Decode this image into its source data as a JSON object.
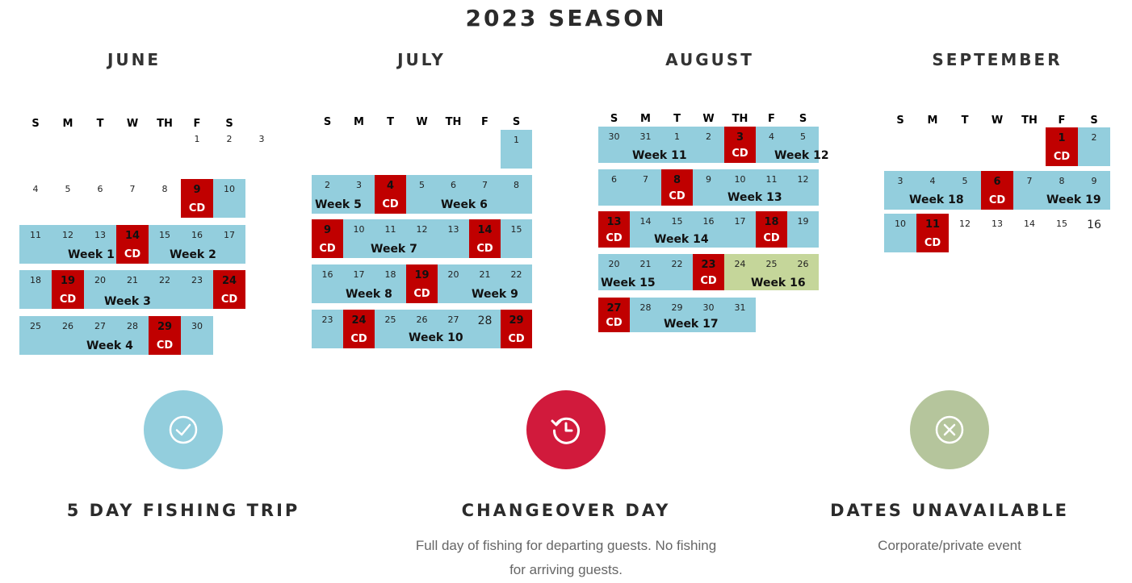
{
  "title": "2023 SEASON",
  "colors": {
    "available": "#93cedd",
    "changeover": "#c00000",
    "unavailable": "#c5d69a",
    "changeover_circle": "#d11a3c",
    "unavailable_circle": "#b5c59c"
  },
  "months": [
    {
      "name": "JUNE",
      "headers": [
        "S",
        "M",
        "T",
        "W",
        "TH",
        "F",
        "S"
      ],
      "cells": [
        {
          "d": "1",
          "c": 0
        },
        {
          "d": "2",
          "c": 0
        },
        {
          "d": "3",
          "c": 0
        },
        {
          "d": "4",
          "c": 0
        },
        {
          "d": "5",
          "c": 0
        },
        {
          "d": "6",
          "c": 0
        },
        {
          "d": "7",
          "c": 0
        },
        {
          "d": "8",
          "c": 0
        },
        {
          "d": "9",
          "c": "r"
        },
        {
          "d": "10",
          "c": "b"
        },
        {
          "d": "11",
          "c": "b"
        },
        {
          "d": "12",
          "c": "b"
        },
        {
          "d": "13",
          "c": "b"
        },
        {
          "d": "14",
          "c": "r"
        },
        {
          "d": "15",
          "c": "b"
        },
        {
          "d": "16",
          "c": "b"
        },
        {
          "d": "17",
          "c": "b"
        },
        {
          "d": "18",
          "c": "b"
        },
        {
          "d": "19",
          "c": "r"
        },
        {
          "d": "20",
          "c": "b"
        },
        {
          "d": "21",
          "c": "b"
        },
        {
          "d": "22",
          "c": "b"
        },
        {
          "d": "23",
          "c": "b"
        },
        {
          "d": "24",
          "c": "r"
        },
        {
          "d": "25",
          "c": "b"
        },
        {
          "d": "26",
          "c": "b"
        },
        {
          "d": "27",
          "c": "b"
        },
        {
          "d": "28",
          "c": "b"
        },
        {
          "d": "29",
          "c": "r"
        },
        {
          "d": "30",
          "c": "b"
        }
      ],
      "weeks": [
        "Week 1",
        "Week 2",
        "Week 3",
        "Week 4"
      ]
    },
    {
      "name": "JULY",
      "headers": [
        "S",
        "M",
        "T",
        "W",
        "TH",
        "F",
        "S"
      ],
      "cells": [
        {
          "d": "1",
          "c": "b"
        },
        {
          "d": "2",
          "c": "b"
        },
        {
          "d": "3",
          "c": "b"
        },
        {
          "d": "4",
          "c": "r"
        },
        {
          "d": "5",
          "c": "b"
        },
        {
          "d": "6",
          "c": "b"
        },
        {
          "d": "7",
          "c": "b"
        },
        {
          "d": "8",
          "c": "b"
        },
        {
          "d": "9",
          "c": "r"
        },
        {
          "d": "10",
          "c": "b"
        },
        {
          "d": "11",
          "c": "b"
        },
        {
          "d": "12",
          "c": "b"
        },
        {
          "d": "13",
          "c": "b"
        },
        {
          "d": "14",
          "c": "r"
        },
        {
          "d": "15",
          "c": "b"
        },
        {
          "d": "16",
          "c": "b"
        },
        {
          "d": "17",
          "c": "b"
        },
        {
          "d": "18",
          "c": "b"
        },
        {
          "d": "19",
          "c": "r"
        },
        {
          "d": "20",
          "c": "b"
        },
        {
          "d": "21",
          "c": "b"
        },
        {
          "d": "22",
          "c": "b"
        },
        {
          "d": "23",
          "c": "b"
        },
        {
          "d": "24",
          "c": "r"
        },
        {
          "d": "25",
          "c": "b"
        },
        {
          "d": "26",
          "c": "b"
        },
        {
          "d": "27",
          "c": "b"
        },
        {
          "d": "28",
          "c": "b"
        },
        {
          "d": "29",
          "c": "r"
        }
      ],
      "weeks": [
        "Week 5",
        "Week 6",
        "Week 7",
        "Week 8",
        "Week 9",
        "Week 10"
      ]
    },
    {
      "name": "AUGUST",
      "headers": [
        "S",
        "M",
        "T",
        "W",
        "TH",
        "F",
        "S"
      ],
      "cells": [
        {
          "d": "30",
          "c": "b"
        },
        {
          "d": "31",
          "c": "b"
        },
        {
          "d": "1",
          "c": "b"
        },
        {
          "d": "2",
          "c": "b"
        },
        {
          "d": "3",
          "c": "r"
        },
        {
          "d": "4",
          "c": "b"
        },
        {
          "d": "5",
          "c": "b"
        },
        {
          "d": "6",
          "c": "b"
        },
        {
          "d": "7",
          "c": "b"
        },
        {
          "d": "8",
          "c": "r"
        },
        {
          "d": "9",
          "c": "b"
        },
        {
          "d": "10",
          "c": "b"
        },
        {
          "d": "11",
          "c": "b"
        },
        {
          "d": "12",
          "c": "b"
        },
        {
          "d": "13",
          "c": "r"
        },
        {
          "d": "14",
          "c": "b"
        },
        {
          "d": "15",
          "c": "b"
        },
        {
          "d": "16",
          "c": "b"
        },
        {
          "d": "17",
          "c": "b"
        },
        {
          "d": "18",
          "c": "r"
        },
        {
          "d": "19",
          "c": "b"
        },
        {
          "d": "20",
          "c": "b"
        },
        {
          "d": "21",
          "c": "b"
        },
        {
          "d": "22",
          "c": "b"
        },
        {
          "d": "23",
          "c": "r"
        },
        {
          "d": "24",
          "c": "g"
        },
        {
          "d": "25",
          "c": "g"
        },
        {
          "d": "26",
          "c": "g"
        },
        {
          "d": "27",
          "c": "r"
        },
        {
          "d": "28",
          "c": "b"
        },
        {
          "d": "29",
          "c": "b"
        },
        {
          "d": "30",
          "c": "b"
        },
        {
          "d": "31",
          "c": "b"
        }
      ],
      "weeks": [
        "Week 11",
        "Week 12",
        "Week 13",
        "Week 14",
        "Week 15",
        "Week 16",
        "Week 17"
      ]
    },
    {
      "name": "SEPTEMBER",
      "headers": [
        "S",
        "M",
        "T",
        "W",
        "TH",
        "F",
        "S"
      ],
      "cells": [
        {
          "d": "1",
          "c": "r"
        },
        {
          "d": "2",
          "c": "b"
        },
        {
          "d": "3",
          "c": "b"
        },
        {
          "d": "4",
          "c": "b"
        },
        {
          "d": "5",
          "c": "b"
        },
        {
          "d": "6",
          "c": "r"
        },
        {
          "d": "7",
          "c": "b"
        },
        {
          "d": "8",
          "c": "b"
        },
        {
          "d": "9",
          "c": "b"
        },
        {
          "d": "10",
          "c": "b"
        },
        {
          "d": "11",
          "c": "r"
        },
        {
          "d": "12",
          "c": 0
        },
        {
          "d": "13",
          "c": 0
        },
        {
          "d": "14",
          "c": 0
        },
        {
          "d": "15",
          "c": 0
        },
        {
          "d": "16",
          "c": 0
        }
      ],
      "weeks": [
        "Week 18",
        "Week 19"
      ]
    }
  ],
  "cd_label": "CD",
  "legend": [
    {
      "icon": "check-icon",
      "title": "5 DAY FISHING TRIP",
      "desc": ""
    },
    {
      "icon": "clock-history-icon",
      "title": "CHANGEOVER DAY",
      "desc": "Full day of fishing for departing guests. No fishing for arriving guests."
    },
    {
      "icon": "x-circle-icon",
      "title": "DATES UNAVAILABLE",
      "desc": "Corporate/private event"
    }
  ]
}
